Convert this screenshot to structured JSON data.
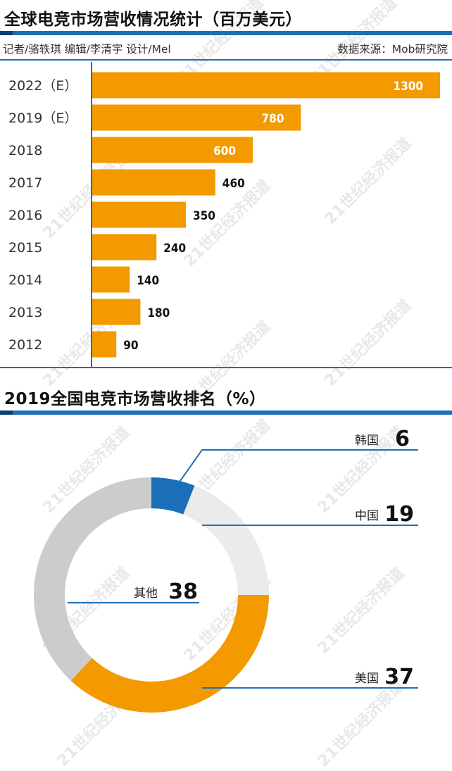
{
  "chart_data": [
    {
      "type": "bar",
      "orientation": "horizontal",
      "title": "全球电竞市场营收情况统计（百万美元）",
      "categories": [
        "2022（E）",
        "2019（E）",
        "2018",
        "2017",
        "2016",
        "2015",
        "2014",
        "2013",
        "2012"
      ],
      "values": [
        1300,
        780,
        600,
        460,
        350,
        240,
        140,
        180,
        90
      ],
      "value_labels": [
        "1300",
        "780",
        "600",
        "460",
        "350",
        "240",
        "140",
        "180",
        "90"
      ],
      "bar_color": "#f29a00",
      "grid": false
    },
    {
      "type": "pie",
      "style": "donut",
      "title": "2019全国电竞市场营收排名（%）",
      "slices": [
        {
          "label": "韩国",
          "value": 6,
          "value_label": "6",
          "color": "#1a6fb8"
        },
        {
          "label": "中国",
          "value": 19,
          "value_label": "19",
          "color": "#ebebeb"
        },
        {
          "label": "美国",
          "value": 37,
          "value_label": "37",
          "color": "#f29a00"
        },
        {
          "label": "其他",
          "value": 38,
          "value_label": "38",
          "color": "#cccccc"
        }
      ]
    }
  ],
  "credits": {
    "left": "记者/骆轶琪  编辑/李清宇  设计/Mel",
    "right": "数据来源：Mob研究院"
  },
  "watermark": "21世纪经济报道",
  "colors": {
    "accent_blue": "#1f6fb8",
    "bar_orange": "#f29a00"
  }
}
